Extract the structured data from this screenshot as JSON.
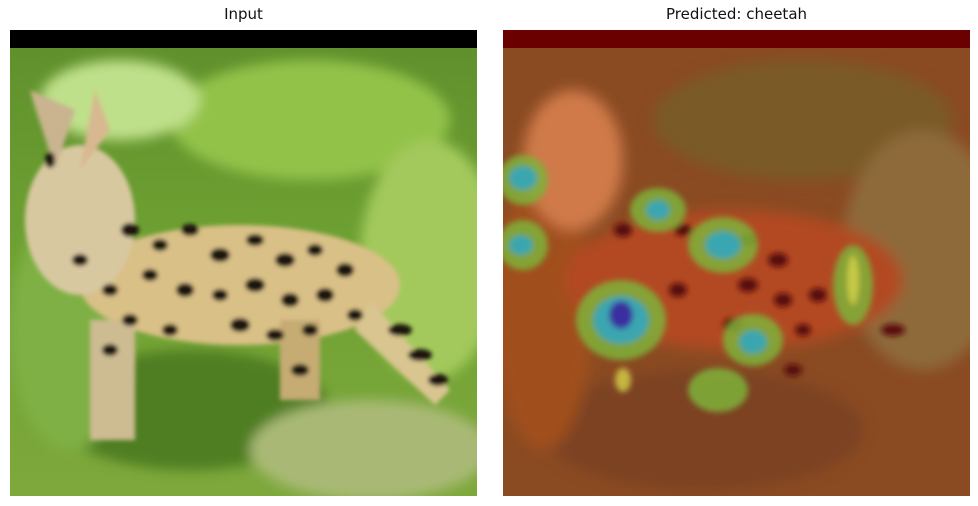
{
  "panels": [
    {
      "title": "Input"
    },
    {
      "title": "Predicted: cheetah"
    }
  ]
}
